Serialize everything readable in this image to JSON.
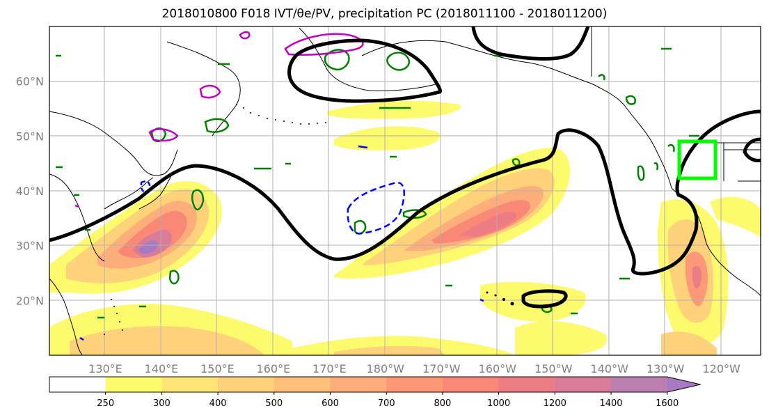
{
  "title": "2018010800 F018 IVT/θe/PV, precipitation PC (2018011100 - 2018011200)",
  "latitude_labels": [
    {
      "lat": 60,
      "text": "60°N"
    },
    {
      "lat": 50,
      "text": "50°N"
    },
    {
      "lat": 40,
      "text": "40°N"
    },
    {
      "lat": 30,
      "text": "30°N"
    },
    {
      "lat": 20,
      "text": "20°N"
    }
  ],
  "longitude_labels": [
    {
      "lon": 130,
      "text": "130°E"
    },
    {
      "lon": 140,
      "text": "140°E"
    },
    {
      "lon": 150,
      "text": "150°E"
    },
    {
      "lon": 160,
      "text": "160°E"
    },
    {
      "lon": 170,
      "text": "170°E"
    },
    {
      "lon": 180,
      "text": "180°W"
    },
    {
      "lon": 190,
      "text": "170°W"
    },
    {
      "lon": 200,
      "text": "160°W"
    },
    {
      "lon": 210,
      "text": "150°W"
    },
    {
      "lon": 220,
      "text": "140°W"
    },
    {
      "lon": 230,
      "text": "130°W"
    },
    {
      "lon": 240,
      "text": "120°W"
    }
  ],
  "map_extent": {
    "lon_min": 120,
    "lon_max": 247,
    "lat_min": 10,
    "lat_max": 70
  },
  "colorbar": {
    "levels": [
      "250",
      "300",
      "400",
      "500",
      "600",
      "700",
      "800",
      "1000",
      "1200",
      "1400",
      "1600"
    ],
    "colors": [
      "#ffffff",
      "#fefa6e",
      "#fee576",
      "#fed27a",
      "#fdc07b",
      "#fdae7a",
      "#fc9a78",
      "#f98877",
      "#ed7d85",
      "#d87c99",
      "#bd7fb0",
      "#a87ac4"
    ]
  },
  "colors": {
    "theta_contour": "#000000",
    "pv_contour": "#008000",
    "negative_contour": "#0000ff",
    "upper_contour": "#c000c0",
    "target_box": "#00ff00"
  }
}
